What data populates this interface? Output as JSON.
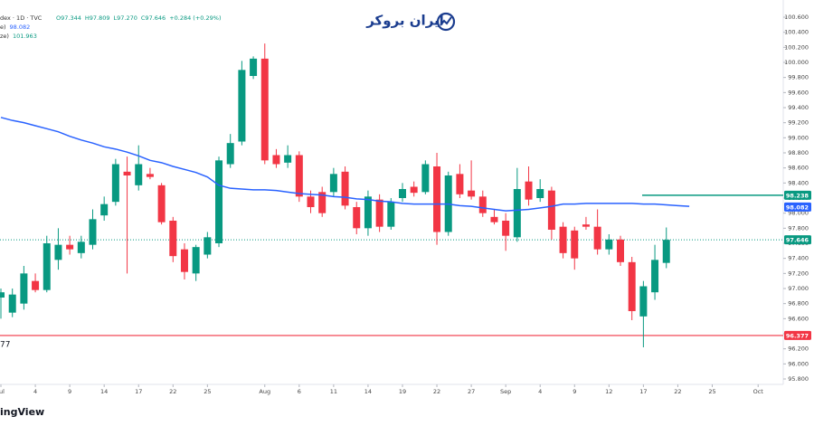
{
  "chart_data": {
    "type": "candlestick",
    "legend": {
      "symbol": "dex · 1D · TVC",
      "ohlc": [
        "O97.344",
        "H97.809",
        "L97.270",
        "C97.646",
        "+0.284 (+0.29%)"
      ],
      "indicators": [
        {
          "name": "e)",
          "value": "98.082"
        },
        {
          "name": "ze)",
          "value": "101.963"
        }
      ]
    },
    "logo": "ایران بروکر",
    "footer": "ingView",
    "left_label": "77",
    "up_color": "#089981",
    "down_color": "#f23645",
    "candles": {
      "open": [
        96.88,
        96.68,
        96.8,
        97.1,
        96.98,
        97.38,
        97.58,
        97.47,
        97.58,
        97.97,
        98.15,
        98.55,
        98.37,
        98.52,
        98.37,
        97.9,
        97.52,
        97.2,
        97.45,
        97.6,
        98.65,
        98.95,
        99.82,
        100.05,
        98.77,
        98.67,
        98.77,
        98.22,
        98.28,
        98.28,
        98.55,
        98.08,
        97.8,
        98.18,
        97.82,
        98.2,
        98.35,
        98.28,
        98.62,
        97.75,
        98.52,
        98.3,
        98.22,
        97.95,
        97.9,
        97.68,
        98.42,
        98.2,
        98.3,
        97.82,
        97.77,
        97.85,
        97.82,
        97.52,
        97.65,
        97.35,
        96.63,
        96.95,
        97.34
      ],
      "high": [
        97.0,
        97.0,
        97.3,
        97.2,
        97.7,
        97.8,
        97.7,
        97.7,
        98.05,
        98.22,
        98.72,
        98.75,
        98.9,
        98.6,
        98.4,
        97.95,
        97.6,
        97.58,
        97.75,
        98.75,
        99.05,
        100.02,
        100.08,
        100.25,
        98.85,
        98.9,
        98.82,
        98.3,
        98.35,
        98.6,
        98.62,
        98.15,
        98.3,
        98.25,
        98.2,
        98.4,
        98.42,
        98.7,
        98.8,
        98.55,
        98.65,
        98.7,
        98.3,
        98.05,
        98.0,
        98.6,
        98.62,
        98.45,
        98.35,
        97.88,
        97.82,
        97.95,
        98.05,
        97.72,
        97.7,
        97.42,
        97.1,
        97.58,
        97.81
      ],
      "low": [
        96.6,
        96.62,
        96.72,
        96.95,
        96.95,
        97.25,
        97.45,
        97.4,
        97.52,
        97.9,
        98.1,
        97.2,
        98.3,
        98.45,
        97.85,
        97.35,
        97.12,
        97.1,
        97.4,
        97.55,
        98.6,
        98.9,
        99.78,
        98.65,
        98.6,
        98.6,
        98.15,
        98.0,
        97.95,
        98.22,
        98.05,
        97.72,
        97.7,
        97.75,
        97.78,
        98.15,
        98.22,
        98.25,
        97.58,
        97.7,
        98.2,
        98.18,
        97.95,
        97.85,
        97.5,
        97.62,
        98.1,
        98.15,
        97.65,
        97.4,
        97.25,
        97.78,
        97.45,
        97.45,
        97.3,
        96.58,
        96.22,
        96.85,
        97.27
      ],
      "close": [
        96.95,
        96.92,
        97.2,
        96.98,
        97.6,
        97.58,
        97.52,
        97.62,
        97.92,
        98.12,
        98.65,
        98.5,
        98.65,
        98.48,
        97.88,
        97.43,
        97.22,
        97.55,
        97.68,
        98.7,
        98.93,
        99.9,
        100.05,
        98.7,
        98.65,
        98.77,
        98.22,
        98.08,
        98.0,
        98.52,
        98.1,
        97.8,
        98.22,
        97.82,
        98.15,
        98.32,
        98.27,
        98.65,
        97.75,
        98.5,
        98.25,
        98.22,
        98.0,
        97.88,
        97.7,
        98.32,
        98.18,
        98.32,
        97.78,
        97.47,
        97.4,
        97.82,
        97.52,
        97.65,
        97.35,
        96.7,
        97.03,
        97.38,
        97.646
      ]
    },
    "series": [
      {
        "name": "MA",
        "color": "#2962ff",
        "values": [
          99.27,
          99.23,
          99.2,
          99.16,
          99.12,
          99.08,
          99.02,
          98.97,
          98.93,
          98.88,
          98.85,
          98.81,
          98.76,
          98.7,
          98.67,
          98.62,
          98.58,
          98.54,
          98.48,
          98.37,
          98.33,
          98.32,
          98.31,
          98.31,
          98.3,
          98.28,
          98.26,
          98.25,
          98.24,
          98.22,
          98.21,
          98.19,
          98.18,
          98.16,
          98.15,
          98.13,
          98.12,
          98.12,
          98.12,
          98.12,
          98.1,
          98.09,
          98.07,
          98.05,
          98.03,
          98.04,
          98.05,
          98.07,
          98.09,
          98.12,
          98.12,
          98.13,
          98.13,
          98.13,
          98.13,
          98.13,
          98.12,
          98.12,
          98.11,
          98.1,
          98.09
        ]
      }
    ],
    "price_lines": [
      {
        "value": 98.238,
        "color": "#089981",
        "line": "partial"
      },
      {
        "value": 98.082,
        "color": "#2962ff",
        "line": "none"
      },
      {
        "value": 97.646,
        "color": "#089981",
        "line": "dotted"
      },
      {
        "value": 96.377,
        "color": "#f23645",
        "line": "full"
      }
    ],
    "xlim": [
      -0.08,
      68.19
    ],
    "ylim": [
      95.728,
      100.828
    ],
    "xticks": [
      {
        "value": 0,
        "label": "Jul"
      },
      {
        "value": 3,
        "label": "4"
      },
      {
        "value": 6,
        "label": "9"
      },
      {
        "value": 9,
        "label": "14"
      },
      {
        "value": 12,
        "label": "17"
      },
      {
        "value": 15,
        "label": "22"
      },
      {
        "value": 18,
        "label": "25"
      },
      {
        "value": 23,
        "label": "Aug"
      },
      {
        "value": 26,
        "label": "6"
      },
      {
        "value": 29,
        "label": "11"
      },
      {
        "value": 32,
        "label": "14"
      },
      {
        "value": 35,
        "label": "19"
      },
      {
        "value": 38,
        "label": "22"
      },
      {
        "value": 41,
        "label": "27"
      },
      {
        "value": 44,
        "label": "Sep"
      },
      {
        "value": 47,
        "label": "4"
      },
      {
        "value": 50,
        "label": "9"
      },
      {
        "value": 53,
        "label": "12"
      },
      {
        "value": 56,
        "label": "17"
      },
      {
        "value": 59,
        "label": "22"
      },
      {
        "value": 62,
        "label": "25"
      },
      {
        "value": 66,
        "label": "Oct"
      }
    ],
    "yticks": [
      {
        "value": 95.8,
        "label": "95.800"
      },
      {
        "value": 96.0,
        "label": "96.000"
      },
      {
        "value": 96.2,
        "label": "96.200"
      },
      {
        "value": 96.4,
        "label": "96.400"
      },
      {
        "value": 96.6,
        "label": "96.600"
      },
      {
        "value": 96.8,
        "label": "96.800"
      },
      {
        "value": 97.0,
        "label": "97.000"
      },
      {
        "value": 97.2,
        "label": "97.200"
      },
      {
        "value": 97.4,
        "label": "97.400"
      },
      {
        "value": 97.6,
        "label": "97.600"
      },
      {
        "value": 97.8,
        "label": "97.800"
      },
      {
        "value": 98.0,
        "label": "98.000"
      },
      {
        "value": 98.2,
        "label": "98.200"
      },
      {
        "value": 98.4,
        "label": "98.400"
      },
      {
        "value": 98.6,
        "label": "98.600"
      },
      {
        "value": 98.8,
        "label": "98.800"
      },
      {
        "value": 99.0,
        "label": "99.000"
      },
      {
        "value": 99.2,
        "label": "99.200"
      },
      {
        "value": 99.4,
        "label": "99.400"
      },
      {
        "value": 99.6,
        "label": "99.600"
      },
      {
        "value": 99.8,
        "label": "99.800"
      },
      {
        "value": 100.0,
        "label": "100.000"
      },
      {
        "value": 100.2,
        "label": "100.200"
      },
      {
        "value": 100.4,
        "label": "100.400"
      },
      {
        "value": 100.6,
        "label": "100.600"
      }
    ]
  }
}
